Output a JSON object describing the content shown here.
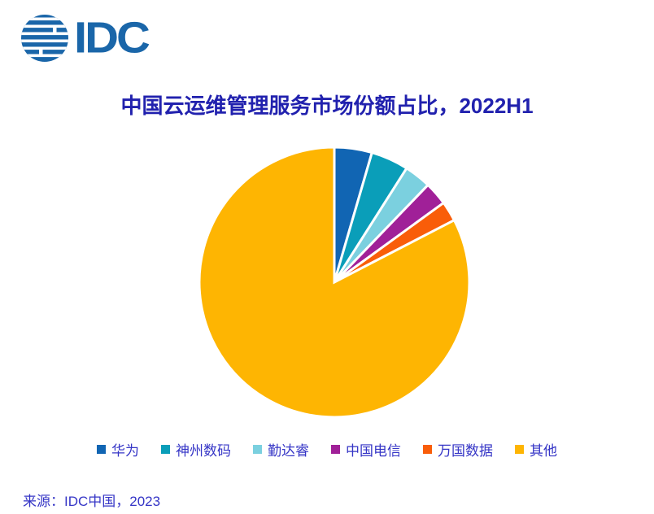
{
  "logo": {
    "brand": "IDC"
  },
  "theme": {
    "background": "#FFFFFF",
    "logo_color": "#1A66A9",
    "title_color": "#2121AE",
    "legend_text_color": "#3535C6",
    "source_text_color": "#3535C6",
    "slice_gap_color": "#FFFFFF"
  },
  "source": {
    "text": "来源：IDC中国，2023"
  },
  "chart_data": {
    "type": "pie",
    "title": "中国云运维管理服务市场份额占比，2022H1",
    "unit": "percent_market_share",
    "start_angle_deg": -90,
    "direction": "clockwise",
    "legend_position": "bottom",
    "data_labels_visible": false,
    "slices": [
      {
        "label": "华为",
        "value": 4.5,
        "color": "#1165B3"
      },
      {
        "label": "神州数码",
        "value": 4.5,
        "color": "#0A9EB9"
      },
      {
        "label": "勤达睿",
        "value": 3.2,
        "color": "#7BD0DF"
      },
      {
        "label": "中国电信",
        "value": 2.8,
        "color": "#A02098"
      },
      {
        "label": "万国数据",
        "value": 2.4,
        "color": "#F95D09"
      },
      {
        "label": "其他",
        "value": 82.6,
        "color": "#FEB502"
      }
    ]
  }
}
